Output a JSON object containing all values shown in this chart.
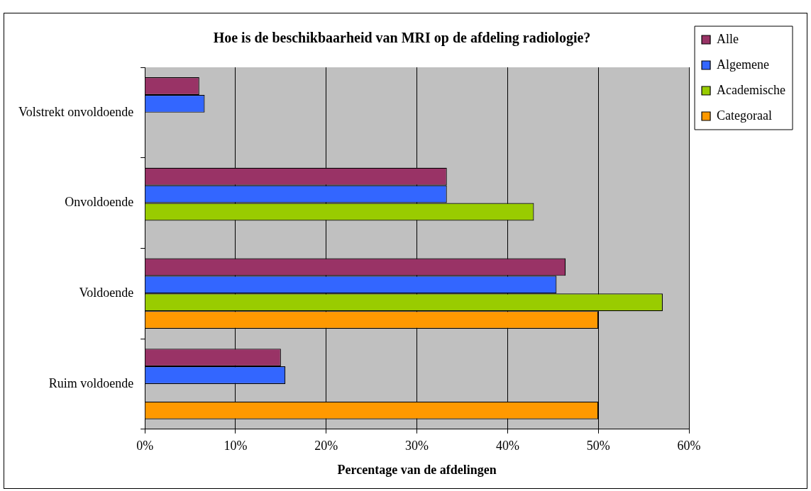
{
  "chart_data": {
    "type": "bar",
    "orientation": "horizontal",
    "title": "Hoe is de beschikbaarheid van MRI op de afdeling radiologie?",
    "xlabel": "Percentage van de afdelingen",
    "categories": [
      "Volstrekt onvoldoende",
      "Onvoldoende",
      "Voldoende",
      "Ruim voldoende"
    ],
    "series": [
      {
        "name": "Alle",
        "color": "#993366",
        "values": [
          6.0,
          33.3,
          46.4,
          15.0
        ]
      },
      {
        "name": "Algemene",
        "color": "#3366ff",
        "values": [
          6.6,
          33.3,
          45.4,
          15.5
        ]
      },
      {
        "name": "Academische",
        "color": "#99cc00",
        "values": [
          null,
          42.9,
          57.1,
          null
        ]
      },
      {
        "name": "Categoraal",
        "color": "#ff9900",
        "values": [
          null,
          null,
          50,
          50
        ]
      }
    ],
    "xlim": [
      0,
      60
    ],
    "xticks": [
      {
        "value": 0,
        "label": "0%"
      },
      {
        "value": 10,
        "label": "10%"
      },
      {
        "value": 20,
        "label": "20%"
      },
      {
        "value": 30,
        "label": "30%"
      },
      {
        "value": 40,
        "label": "40%"
      },
      {
        "value": 50,
        "label": "50%"
      },
      {
        "value": 60,
        "label": "60%"
      }
    ],
    "grid": "x",
    "legend": "right"
  }
}
